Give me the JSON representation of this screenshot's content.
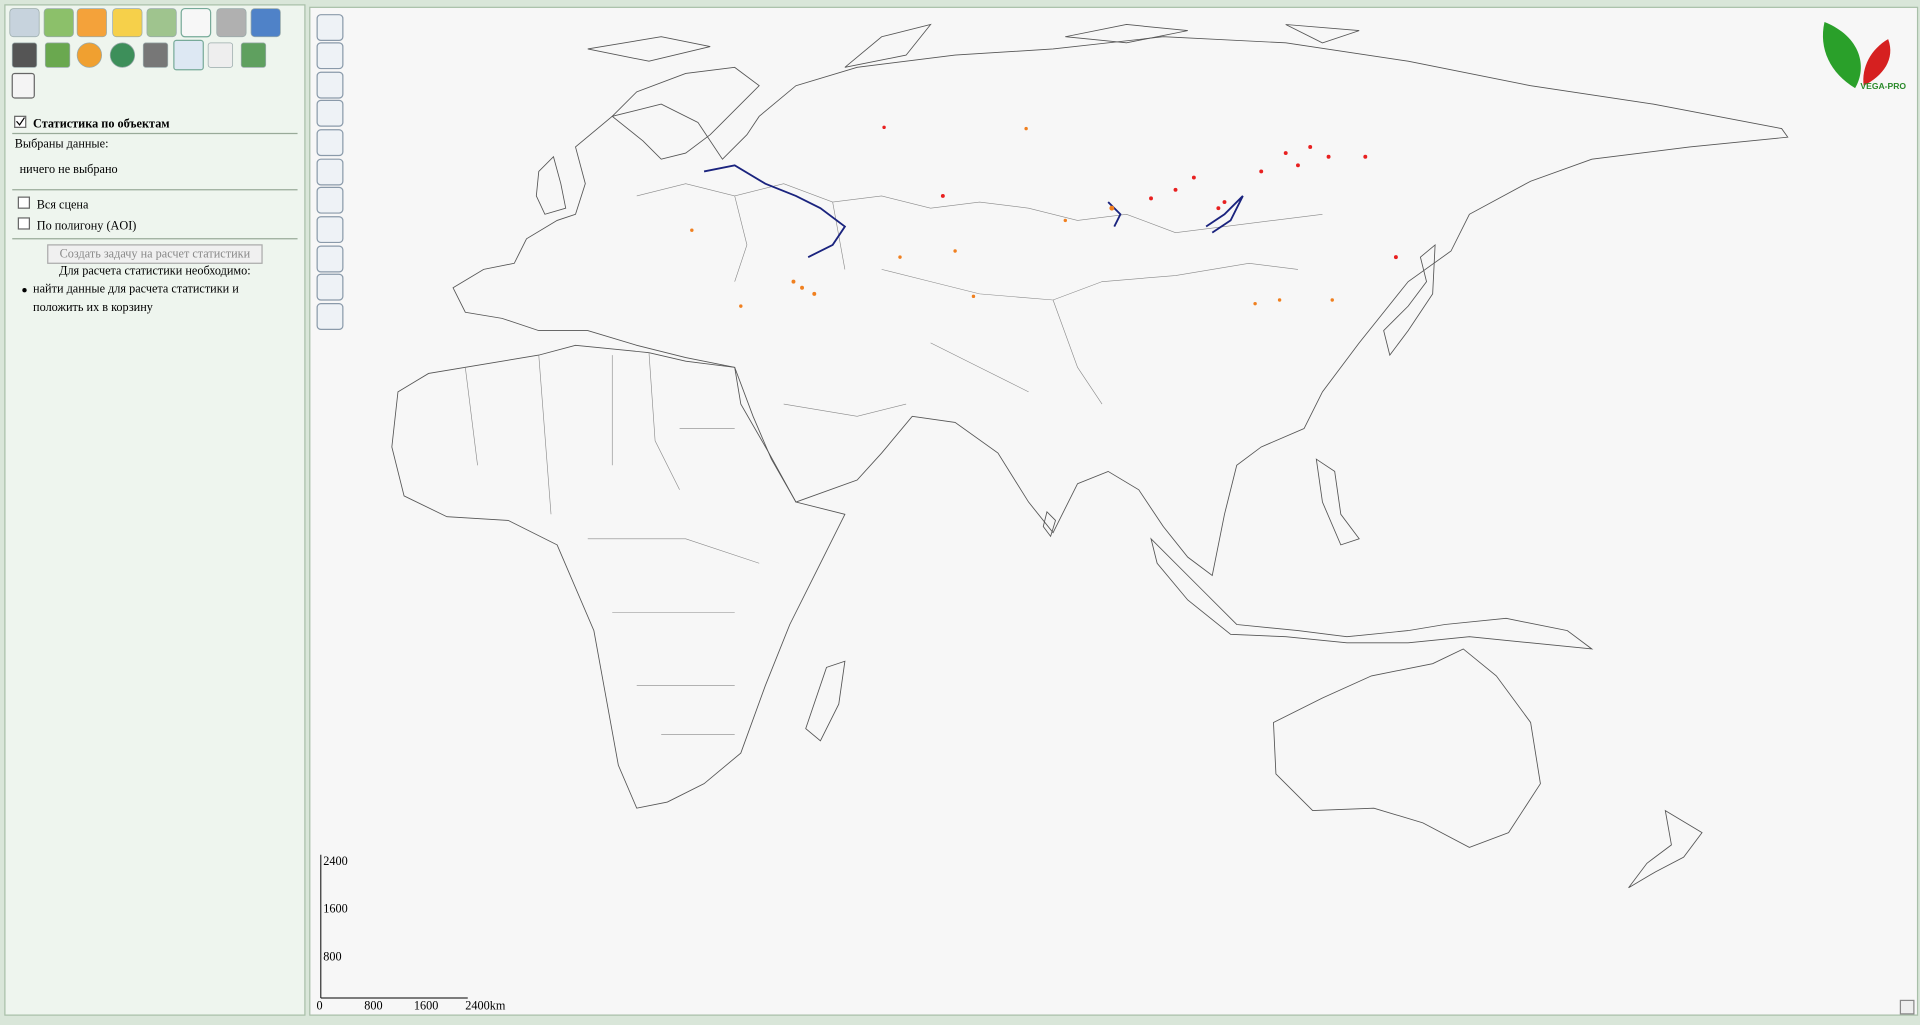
{
  "panel": {
    "title": "Статистика по объектам",
    "selected_label": "Выбраны данные:",
    "selected_value": "ничего не выбрано",
    "options": [
      "Вся сцена",
      "По полигону (AOI)"
    ],
    "button": "Создать задачу на расчет статистики",
    "requirements_title": "Для расчета статистики необходимо:",
    "requirements": [
      "найти данные для расчета статистики и положить их в корзину"
    ]
  },
  "scale_bar": {
    "vertical": [
      "2400",
      "1600",
      "800"
    ],
    "horizontal": [
      "0",
      "800",
      "1600",
      "2400km"
    ]
  },
  "logo": {
    "text": "VEGA-PRO"
  }
}
